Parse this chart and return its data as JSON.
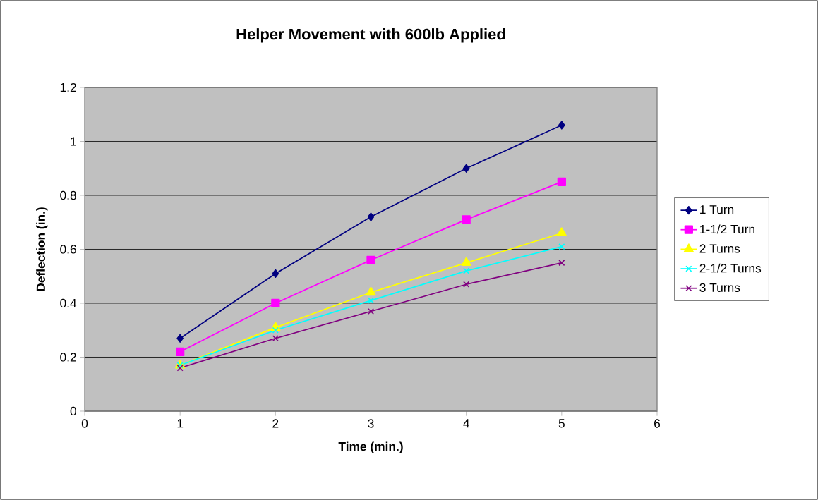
{
  "chart_data": {
    "type": "line",
    "title": "Helper Movement with 600lb Applied",
    "xlabel": "Time (min.)",
    "ylabel": "Deflection (in.)",
    "x": [
      1,
      2,
      3,
      4,
      5
    ],
    "series": [
      {
        "name": "1 Turn",
        "color": "#000080",
        "marker": "diamond",
        "values": [
          0.27,
          0.51,
          0.72,
          0.9,
          1.06
        ]
      },
      {
        "name": "1-1/2 Turn",
        "color": "#ff00ff",
        "marker": "square",
        "values": [
          0.22,
          0.4,
          0.56,
          0.71,
          0.85
        ]
      },
      {
        "name": "2 Turns",
        "color": "#ffff00",
        "marker": "triangle",
        "values": [
          0.17,
          0.31,
          0.44,
          0.55,
          0.66
        ]
      },
      {
        "name": "2-1/2 Turns",
        "color": "#00ffff",
        "marker": "cross",
        "values": [
          0.17,
          0.3,
          0.41,
          0.52,
          0.61
        ]
      },
      {
        "name": "3 Turns",
        "color": "#800080",
        "marker": "cross",
        "values": [
          0.16,
          0.27,
          0.37,
          0.47,
          0.55
        ]
      }
    ],
    "xlim": [
      0,
      6
    ],
    "xticks": [
      0,
      1,
      2,
      3,
      4,
      5,
      6
    ],
    "ylim": [
      0,
      1.2
    ],
    "yticks": [
      0,
      0.2,
      0.4,
      0.6,
      0.8,
      1,
      1.2
    ],
    "grid": "y",
    "legend": "right"
  }
}
